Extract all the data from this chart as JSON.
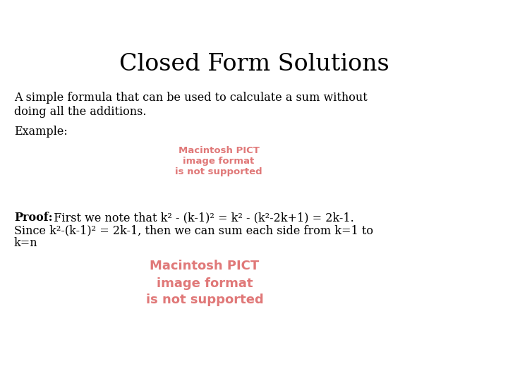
{
  "title": "Closed Form Solutions",
  "title_fontsize": 24,
  "title_font": "DejaVu Serif",
  "bg_color": "#ffffff",
  "text_color": "#000000",
  "pict_color": "#e07878",
  "body_text_1a": "A simple formula that can be used to calculate a sum without",
  "body_text_1b": "doing all the additions.",
  "body_text_2": "Example:",
  "pict_text_1_line1": "Macintosh PICT",
  "pict_text_1_line2": "image format",
  "pict_text_1_line3": "is not supported",
  "proof_bold": "Proof:",
  "proof_line1_rest": "  First we note that k² - (k-1)² = k² - (k²-2k+1) = 2k-1.",
  "proof_line2": "Since k²-(k-1)² = 2k-1, then we can sum each side from k=1 to",
  "proof_line3": "k=n",
  "pict_text_2_line1": "Macintosh PICT",
  "pict_text_2_line2": "image format",
  "pict_text_2_line3": "is not supported",
  "body_fontsize": 11.5,
  "pict1_fontsize": 9.5,
  "pict2_fontsize": 13,
  "proof_fontsize": 11.5
}
